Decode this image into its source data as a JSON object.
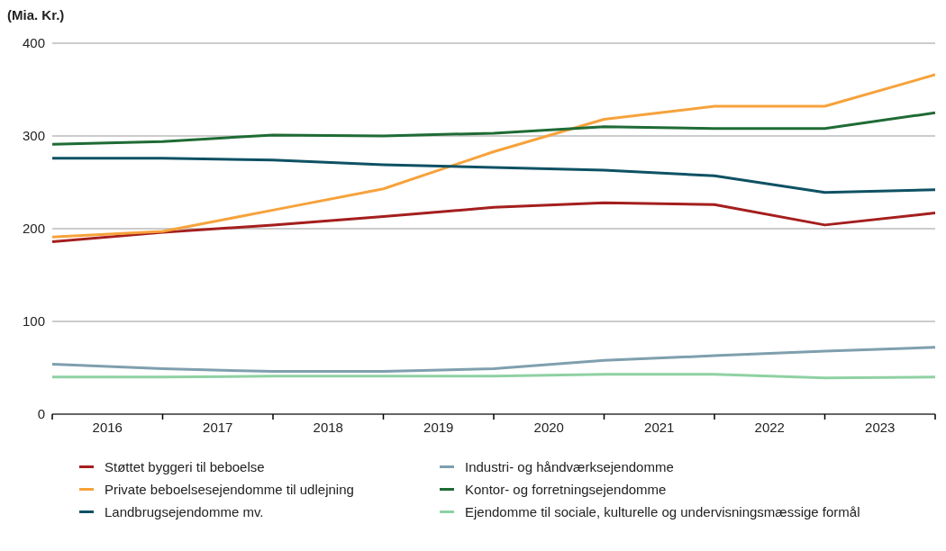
{
  "chart_data": {
    "type": "line",
    "ylabel": "(Mia. Kr.)",
    "x": [
      2016,
      2017,
      2018,
      2019,
      2020,
      2021,
      2022,
      2023,
      2024
    ],
    "xlim": [
      2016,
      2024
    ],
    "xticks": [
      {
        "value": 2016,
        "label": null
      },
      {
        "value": 2016.5,
        "label": "2016"
      },
      {
        "value": 2017,
        "label": null
      },
      {
        "value": 2017.5,
        "label": "2017"
      },
      {
        "value": 2018,
        "label": null
      },
      {
        "value": 2018.5,
        "label": "2018"
      },
      {
        "value": 2019,
        "label": null
      },
      {
        "value": 2019.5,
        "label": "2019"
      },
      {
        "value": 2020,
        "label": null
      },
      {
        "value": 2020.5,
        "label": "2020"
      },
      {
        "value": 2021,
        "label": null
      },
      {
        "value": 2021.5,
        "label": "2021"
      },
      {
        "value": 2022,
        "label": null
      },
      {
        "value": 2022.5,
        "label": "2022"
      },
      {
        "value": 2023,
        "label": null
      },
      {
        "value": 2023.5,
        "label": "2023"
      },
      {
        "value": 2024,
        "label": null
      }
    ],
    "ylim": [
      0,
      400
    ],
    "yticks": [
      0,
      100,
      200,
      300,
      400
    ],
    "grid": "y",
    "legend": "bottom",
    "marker": "none",
    "line_style": "solid",
    "series": [
      {
        "name": "Støttet byggeri til beboelse",
        "color": "#a51e1e",
        "values": [
          186,
          196,
          204,
          213,
          223,
          228,
          226,
          204,
          217
        ]
      },
      {
        "name": "Private beboelsesejendomme til udlejning",
        "color": "#f7a23b",
        "values": [
          191,
          197,
          220,
          243,
          283,
          318,
          332,
          332,
          366
        ]
      },
      {
        "name": "Landbrugsejendomme mv.",
        "color": "#0e5164",
        "values": [
          276,
          276,
          274,
          269,
          266,
          263,
          257,
          239,
          242
        ]
      },
      {
        "name": "Industri- og håndværksejendomme",
        "color": "#7f9fae",
        "values": [
          54,
          49,
          46,
          46,
          49,
          58,
          63,
          68,
          72
        ]
      },
      {
        "name": "Kontor- og forretningsejendomme",
        "color": "#1f6b35",
        "values": [
          291,
          294,
          301,
          300,
          303,
          310,
          308,
          308,
          325
        ]
      },
      {
        "name": "Ejendomme til sociale, kulturelle og undervisningsmæssige formål",
        "color": "#8fd1a3",
        "values": [
          40,
          40,
          41,
          41,
          41,
          43,
          43,
          39,
          40
        ]
      }
    ]
  }
}
